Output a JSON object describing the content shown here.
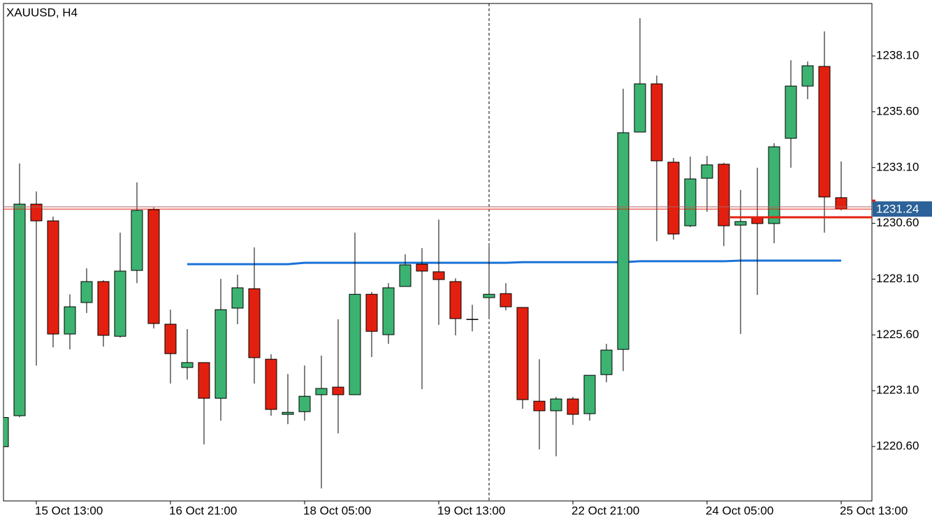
{
  "chart_data": {
    "type": "candlestick",
    "title": "XAUUSD, H4",
    "categories": [
      null,
      null,
      "15 Oct 13:00",
      null,
      null,
      null,
      null,
      null,
      null,
      null,
      "16 Oct 21:00",
      null,
      null,
      null,
      null,
      null,
      null,
      null,
      "18 Oct 05:00",
      null,
      null,
      null,
      null,
      null,
      null,
      null,
      "19 Oct 13:00",
      null,
      null,
      null,
      null,
      null,
      null,
      null,
      "22 Oct 21:00",
      null,
      null,
      null,
      null,
      null,
      null,
      null,
      "24 Oct 05:00",
      null,
      null,
      null,
      null,
      null,
      null,
      null,
      "25 Oct 13:00"
    ],
    "open": [
      1220.59,
      1221.98,
      1231.46,
      1230.71,
      1225.64,
      1227.05,
      1227.99,
      1225.54,
      1228.49,
      1231.21,
      1226.08,
      1224.14,
      1224.36,
      1222.76,
      1226.8,
      1227.67,
      1224.51,
      1222.04,
      1222.16,
      1222.92,
      1223.26,
      1222.92,
      1227.42,
      1225.61,
      1227.77,
      1228.77,
      1228.43,
      1227.99,
      1226.3,
      1227.27,
      1227.45,
      1226.83,
      1222.63,
      1222.2,
      1222.73,
      1222.07,
      1223.82,
      1224.95,
      1234.69,
      1236.85,
      1233.34,
      1230.49,
      1232.62,
      1233.25,
      1230.52,
      1230.84,
      1230.59,
      1234.41,
      1236.75,
      1237.63,
      1231.75
    ],
    "high": [
      1222.1,
      1233.28,
      1232.03,
      1230.9,
      1227.42,
      1228.58,
      1228.05,
      1230.18,
      1232.43,
      1231.31,
      1226.73,
      1225.86,
      1224.36,
      1228.11,
      1228.3,
      1229.52,
      1224.73,
      1223.85,
      1224.23,
      1224.67,
      1226.3,
      1230.18,
      1227.52,
      1227.92,
      1229.21,
      1229.49,
      1230.77,
      1228.14,
      1226.95,
      1229.58,
      1227.92,
      1226.83,
      1224.51,
      1222.82,
      1222.82,
      1223.79,
      1225.2,
      1236.63,
      1239.79,
      1237.22,
      1233.53,
      1233.59,
      1233.62,
      1233.31,
      1232.09,
      1233.09,
      1234.19,
      1237.91,
      1237.85,
      1239.2,
      1233.37
    ],
    "low": [
      1220.4,
      1221.91,
      1224.23,
      1225.04,
      1224.95,
      1226.58,
      1225.08,
      1225.48,
      1227.92,
      1225.89,
      1223.42,
      1223.6,
      1220.69,
      1221.76,
      1226.08,
      1223.42,
      1221.98,
      1221.6,
      1221.76,
      1218.72,
      1221.19,
      1222.92,
      1224.61,
      1225.2,
      1227.77,
      1223.17,
      1226.05,
      1225.58,
      1225.76,
      1226.36,
      1226.7,
      1222.29,
      1220.47,
      1220.16,
      1221.57,
      1221.76,
      1223.48,
      1223.98,
      1234.69,
      1229.8,
      1229.87,
      1230.43,
      1231.12,
      1229.58,
      1225.64,
      1227.39,
      1229.71,
      1233.09,
      1236.16,
      1230.18,
      1231.18
    ],
    "close": [
      1221.9,
      1231.46,
      1230.71,
      1225.64,
      1226.86,
      1227.99,
      1225.58,
      1228.46,
      1231.18,
      1226.11,
      1224.76,
      1224.36,
      1222.76,
      1226.73,
      1227.71,
      1224.58,
      1222.26,
      1222.13,
      1222.85,
      1223.2,
      1222.92,
      1227.42,
      1225.76,
      1227.71,
      1228.74,
      1228.46,
      1228.08,
      1226.33,
      1226.3,
      1227.42,
      1226.86,
      1222.7,
      1222.2,
      1222.73,
      1222.04,
      1223.79,
      1224.92,
      1234.66,
      1236.85,
      1233.4,
      1230.12,
      1232.59,
      1233.22,
      1230.49,
      1230.68,
      1230.59,
      1234.03,
      1236.75,
      1237.66,
      1231.78,
      1231.24
    ],
    "up_color": "#3cb371",
    "down_color": "#e3200f",
    "ylim": [
      1218.16,
      1240.45
    ],
    "yticks": [
      {
        "value": 1238.1,
        "label": "1238.10"
      },
      {
        "value": 1235.6,
        "label": "1235.60"
      },
      {
        "value": 1233.1,
        "label": "1233.10"
      },
      {
        "value": 1230.6,
        "label": "1230.60"
      },
      {
        "value": 1228.1,
        "label": "1228.10"
      },
      {
        "value": 1225.6,
        "label": "1225.60"
      },
      {
        "value": 1223.1,
        "label": "1223.10"
      },
      {
        "value": 1220.6,
        "label": "1220.60"
      }
    ],
    "last_price": {
      "value": 1231.24,
      "label": "1231.24",
      "color": "#e3200f",
      "box_color": "#2b6299"
    },
    "ask_line": {
      "value": 1231.34,
      "color": "#b06060"
    },
    "ma_line": {
      "color": "#1a72d6",
      "values": [
        null,
        null,
        null,
        null,
        null,
        null,
        null,
        null,
        null,
        null,
        null,
        1228.77,
        1228.77,
        1228.77,
        1228.77,
        1228.77,
        1228.77,
        1228.77,
        1228.83,
        1228.83,
        1228.83,
        1228.83,
        1228.83,
        1228.83,
        1228.83,
        1228.83,
        1228.83,
        1228.83,
        1228.83,
        1228.83,
        1228.83,
        1228.86,
        1228.86,
        1228.86,
        1228.86,
        1228.86,
        1228.86,
        1228.86,
        1228.9,
        1228.9,
        1228.9,
        1228.9,
        1228.9,
        1228.9,
        1228.93,
        1228.93,
        1228.93,
        1228.93,
        1228.93,
        1228.93,
        1228.93
      ]
    },
    "level_line": {
      "value": 1230.87,
      "color": "#e3200f"
    }
  }
}
